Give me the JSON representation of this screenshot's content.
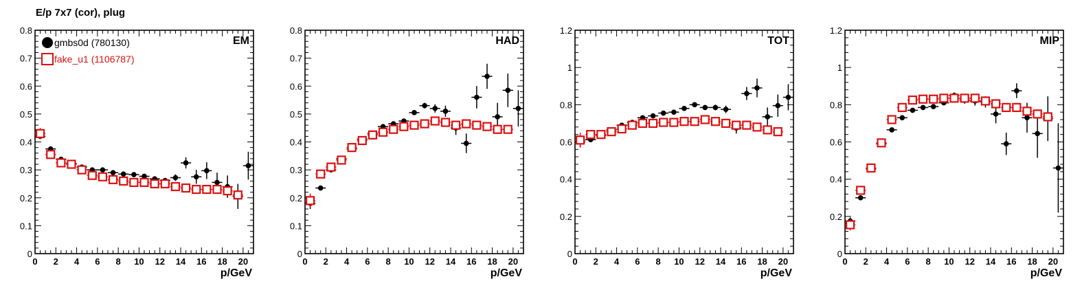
{
  "title": "E/p 7x7 (cor), plug",
  "legend": [
    {
      "label": "gmbs0d (780130)",
      "color": "#000000",
      "marker": "filled-circle"
    },
    {
      "label": "fake_u1 (1106787)",
      "color": "#dd1111",
      "marker": "open-square"
    }
  ],
  "chart_data": [
    {
      "type": "scatter",
      "title": "EM",
      "xlabel": "p/GeV",
      "xlim": [
        0,
        21
      ],
      "ylim": [
        0,
        0.8
      ],
      "xticks": [
        0,
        2,
        4,
        6,
        8,
        10,
        12,
        14,
        16,
        18,
        20
      ],
      "yticks": [
        0,
        0.1,
        0.2,
        0.3,
        0.4,
        0.5,
        0.6,
        0.7,
        0.8
      ],
      "ytick_labels": [
        "0",
        "0.1",
        "0.2",
        "0.3",
        "0.4",
        "0.5",
        "0.6",
        "0.7",
        "0.8"
      ],
      "legend_position": "top-left",
      "x": [
        0.5,
        1.5,
        2.5,
        3.5,
        4.5,
        5.5,
        6.5,
        7.5,
        8.5,
        9.5,
        10.5,
        11.5,
        12.5,
        13.5,
        14.5,
        15.5,
        16.5,
        17.5,
        18.5,
        19.5,
        20.5
      ],
      "series": [
        {
          "name": "gmbs0d (780130)",
          "values": [
            0.42,
            0.375,
            0.338,
            0.323,
            0.31,
            0.3,
            0.3,
            0.29,
            0.285,
            0.283,
            0.277,
            0.268,
            0.262,
            0.272,
            0.325,
            0.275,
            0.297,
            0.255,
            0.24,
            0.205,
            0.315
          ],
          "errors": [
            0.01,
            0.005,
            0.004,
            0.004,
            0.004,
            0.004,
            0.004,
            0.004,
            0.004,
            0.004,
            0.005,
            0.006,
            0.008,
            0.012,
            0.02,
            0.025,
            0.03,
            0.035,
            0.04,
            0.045,
            0.05
          ]
        },
        {
          "name": "fake_u1 (1106787)",
          "values": [
            0.43,
            0.355,
            0.325,
            0.32,
            0.3,
            0.28,
            0.275,
            0.265,
            0.26,
            0.255,
            0.255,
            0.25,
            0.25,
            0.24,
            0.235,
            0.23,
            0.23,
            0.23,
            0.225,
            0.21
          ],
          "errors": [
            0.02,
            0.008,
            0.005,
            0.004,
            0.004,
            0.004,
            0.004,
            0.004,
            0.004,
            0.004,
            0.004,
            0.004,
            0.004,
            0.004,
            0.004,
            0.005,
            0.006,
            0.008,
            0.01,
            0.015
          ]
        }
      ]
    },
    {
      "type": "scatter",
      "title": "HAD",
      "xlabel": "p/GeV",
      "xlim": [
        0,
        21
      ],
      "ylim": [
        0,
        0.8
      ],
      "xticks": [
        0,
        2,
        4,
        6,
        8,
        10,
        12,
        14,
        16,
        18,
        20
      ],
      "yticks": [
        0,
        0.1,
        0.2,
        0.3,
        0.4,
        0.5,
        0.6,
        0.7,
        0.8
      ],
      "ytick_labels": [
        "0",
        "0.1",
        "0.2",
        "0.3",
        "0.4",
        "0.5",
        "0.6",
        "0.7",
        "0.8"
      ],
      "x": [
        0.5,
        1.5,
        2.5,
        3.5,
        4.5,
        5.5,
        6.5,
        7.5,
        8.5,
        9.5,
        10.5,
        11.5,
        12.5,
        13.5,
        14.5,
        15.5,
        16.5,
        17.5,
        18.5,
        19.5,
        20.5
      ],
      "series": [
        {
          "name": "gmbs0d (780130)",
          "values": [
            0.18,
            0.235,
            0.3,
            0.34,
            0.375,
            0.41,
            0.43,
            0.455,
            0.465,
            0.475,
            0.505,
            0.53,
            0.52,
            0.51,
            0.45,
            0.395,
            0.56,
            0.635,
            0.49,
            0.585,
            0.52
          ],
          "errors": [
            0.02,
            0.005,
            0.005,
            0.005,
            0.005,
            0.005,
            0.005,
            0.006,
            0.006,
            0.007,
            0.008,
            0.01,
            0.015,
            0.02,
            0.025,
            0.035,
            0.04,
            0.045,
            0.05,
            0.06,
            0.065
          ]
        },
        {
          "name": "fake_u1 (1106787)",
          "values": [
            0.19,
            0.285,
            0.31,
            0.335,
            0.38,
            0.405,
            0.425,
            0.435,
            0.445,
            0.455,
            0.46,
            0.465,
            0.475,
            0.47,
            0.46,
            0.465,
            0.46,
            0.455,
            0.445,
            0.445
          ],
          "errors": [
            0.025,
            0.01,
            0.006,
            0.005,
            0.005,
            0.005,
            0.005,
            0.005,
            0.005,
            0.005,
            0.005,
            0.005,
            0.005,
            0.005,
            0.005,
            0.005,
            0.006,
            0.007,
            0.008,
            0.01
          ]
        }
      ]
    },
    {
      "type": "scatter",
      "title": "TOT",
      "xlabel": "p/GeV",
      "xlim": [
        0,
        21
      ],
      "ylim": [
        0,
        1.2
      ],
      "xticks": [
        0,
        2,
        4,
        6,
        8,
        10,
        12,
        14,
        16,
        18,
        20
      ],
      "yticks": [
        0,
        0.2,
        0.4,
        0.6,
        0.8,
        1,
        1.2
      ],
      "ytick_labels": [
        "0",
        "0.2",
        "0.4",
        "0.6",
        "0.8",
        "1",
        "1.2"
      ],
      "x": [
        0.5,
        1.5,
        2.5,
        3.5,
        4.5,
        5.5,
        6.5,
        7.5,
        8.5,
        9.5,
        10.5,
        11.5,
        12.5,
        13.5,
        14.5,
        15.5,
        16.5,
        17.5,
        18.5,
        19.5,
        20.5
      ],
      "series": [
        {
          "name": "gmbs0d (780130)",
          "values": [
            0.6,
            0.612,
            0.635,
            0.665,
            0.69,
            0.705,
            0.73,
            0.74,
            0.755,
            0.76,
            0.78,
            0.8,
            0.785,
            0.785,
            0.775,
            0.675,
            0.86,
            0.89,
            0.735,
            0.795,
            0.84
          ],
          "errors": [
            0.03,
            0.006,
            0.005,
            0.005,
            0.005,
            0.005,
            0.005,
            0.005,
            0.006,
            0.007,
            0.008,
            0.01,
            0.012,
            0.015,
            0.02,
            0.03,
            0.035,
            0.05,
            0.05,
            0.06,
            0.07
          ]
        },
        {
          "name": "fake_u1 (1106787)",
          "values": [
            0.61,
            0.64,
            0.64,
            0.655,
            0.67,
            0.69,
            0.7,
            0.7,
            0.705,
            0.705,
            0.71,
            0.71,
            0.72,
            0.71,
            0.7,
            0.69,
            0.69,
            0.68,
            0.665,
            0.655
          ],
          "errors": [
            0.04,
            0.01,
            0.006,
            0.005,
            0.005,
            0.005,
            0.005,
            0.005,
            0.005,
            0.005,
            0.005,
            0.005,
            0.005,
            0.005,
            0.005,
            0.006,
            0.006,
            0.007,
            0.008,
            0.01
          ]
        }
      ]
    },
    {
      "type": "scatter",
      "title": "MIP",
      "xlabel": "p/GeV",
      "xlim": [
        0,
        21
      ],
      "ylim": [
        0,
        1.2
      ],
      "xticks": [
        0,
        2,
        4,
        6,
        8,
        10,
        12,
        14,
        16,
        18,
        20
      ],
      "yticks": [
        0,
        0.2,
        0.4,
        0.6,
        0.8,
        1,
        1.2
      ],
      "ytick_labels": [
        "0",
        "0.2",
        "0.4",
        "0.6",
        "0.8",
        "1",
        "1.2"
      ],
      "x": [
        0.5,
        1.5,
        2.5,
        3.5,
        4.5,
        5.5,
        6.5,
        7.5,
        8.5,
        9.5,
        10.5,
        11.5,
        12.5,
        13.5,
        14.5,
        15.5,
        16.5,
        17.5,
        18.5,
        19.5,
        20.5
      ],
      "series": [
        {
          "name": "gmbs0d (780130)",
          "values": [
            0.175,
            0.3,
            0.455,
            0.59,
            0.665,
            0.73,
            0.77,
            0.785,
            0.79,
            0.81,
            0.85,
            0.825,
            0.82,
            0.815,
            0.75,
            0.59,
            0.875,
            0.73,
            0.645,
            0.725,
            0.46
          ],
          "errors": [
            0.02,
            0.01,
            0.01,
            0.01,
            0.008,
            0.007,
            0.007,
            0.007,
            0.008,
            0.01,
            0.015,
            0.02,
            0.025,
            0.03,
            0.05,
            0.06,
            0.04,
            0.08,
            0.13,
            0.12,
            0.24
          ]
        },
        {
          "name": "fake_u1 (1106787)",
          "values": [
            0.155,
            0.34,
            0.46,
            0.595,
            0.72,
            0.785,
            0.825,
            0.83,
            0.83,
            0.835,
            0.835,
            0.835,
            0.835,
            0.82,
            0.805,
            0.785,
            0.785,
            0.765,
            0.75,
            0.735
          ],
          "errors": [
            0.03,
            0.015,
            0.01,
            0.008,
            0.007,
            0.006,
            0.006,
            0.006,
            0.006,
            0.006,
            0.006,
            0.006,
            0.006,
            0.006,
            0.006,
            0.006,
            0.007,
            0.008,
            0.009,
            0.01
          ]
        }
      ]
    }
  ]
}
